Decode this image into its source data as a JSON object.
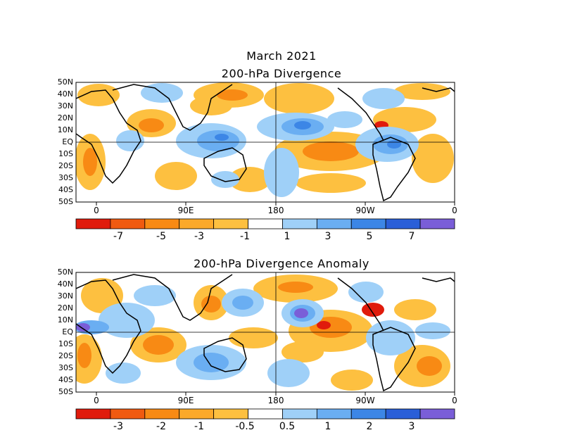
{
  "header": {
    "month": "March 2021"
  },
  "panels": [
    {
      "title": "200-hPa Divergence",
      "lat_labels": [
        "50N",
        "40N",
        "30N",
        "20N",
        "10N",
        "EQ",
        "10S",
        "20S",
        "30S",
        "40S",
        "50S"
      ],
      "lon_labels": [
        "0",
        "90E",
        "180",
        "90W",
        "0"
      ],
      "colorbar": {
        "labels": [
          "-7",
          "-5",
          "-3",
          "-1",
          "1",
          "3",
          "5",
          "7"
        ],
        "colors": [
          "#e01b0c",
          "#f05a10",
          "#f88a14",
          "#fba92a",
          "#fdc040",
          "#ffffff",
          "#9fd0f8",
          "#6aaef2",
          "#3c86e6",
          "#2a5fd8",
          "#7a5ed8"
        ]
      }
    },
    {
      "title": "200-hPa Divergence Anomaly",
      "lat_labels": [
        "50N",
        "40N",
        "30N",
        "20N",
        "10N",
        "EQ",
        "10S",
        "20S",
        "30S",
        "40S",
        "50S"
      ],
      "lon_labels": [
        "0",
        "90E",
        "180",
        "90W",
        "0"
      ],
      "colorbar": {
        "labels": [
          "-3",
          "-2",
          "-1",
          "-0.5",
          "0.5",
          "1",
          "2",
          "3"
        ],
        "colors": [
          "#e01b0c",
          "#f05a10",
          "#f88a14",
          "#fba92a",
          "#fdc040",
          "#ffffff",
          "#9fd0f8",
          "#6aaef2",
          "#3c86e6",
          "#2a5fd8",
          "#7a5ed8"
        ]
      }
    }
  ]
}
